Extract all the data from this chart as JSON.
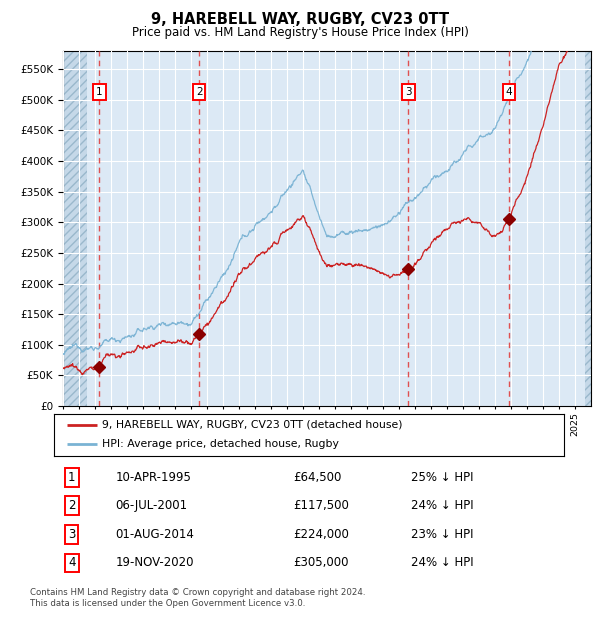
{
  "title": "9, HAREBELL WAY, RUGBY, CV23 0TT",
  "subtitle": "Price paid vs. HM Land Registry's House Price Index (HPI)",
  "legend_line1": "9, HAREBELL WAY, RUGBY, CV23 0TT (detached house)",
  "legend_line2": "HPI: Average price, detached house, Rugby",
  "footer_line1": "Contains HM Land Registry data © Crown copyright and database right 2024.",
  "footer_line2": "This data is licensed under the Open Government Licence v3.0.",
  "transactions": [
    {
      "num": 1,
      "date": "10-APR-1995",
      "price": 64500,
      "pct": "25% ↓ HPI",
      "x_year": 1995.27
    },
    {
      "num": 2,
      "date": "06-JUL-2001",
      "price": 117500,
      "pct": "24% ↓ HPI",
      "x_year": 2001.51
    },
    {
      "num": 3,
      "date": "01-AUG-2014",
      "price": 224000,
      "pct": "23% ↓ HPI",
      "x_year": 2014.58
    },
    {
      "num": 4,
      "date": "19-NOV-2020",
      "price": 305000,
      "pct": "24% ↓ HPI",
      "x_year": 2020.88
    }
  ],
  "xmin": 1993.0,
  "xmax": 2026.0,
  "ymin": 0,
  "ymax": 580000,
  "yticks": [
    0,
    50000,
    100000,
    150000,
    200000,
    250000,
    300000,
    350000,
    400000,
    450000,
    500000,
    550000
  ],
  "hpi_color": "#7ab3d4",
  "price_color": "#cc2222",
  "marker_color": "#8b0000",
  "vline_color": "#e05050",
  "background_color": "#dce9f5",
  "hatch_color": "#c5d8e8",
  "grid_color": "#ffffff"
}
